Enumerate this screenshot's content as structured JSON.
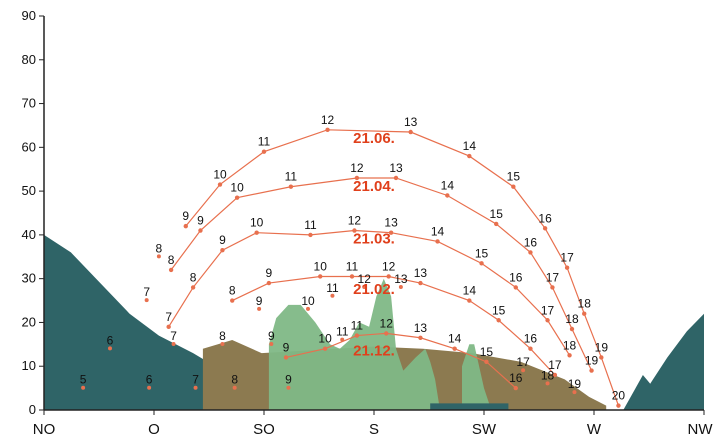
{
  "chart_data": {
    "type": "line",
    "title": "",
    "xlabel": "",
    "ylabel": "",
    "xlim": [
      45,
      315
    ],
    "ylim": [
      0,
      90
    ],
    "y_ticks": [
      0,
      10,
      20,
      30,
      40,
      50,
      60,
      70,
      80,
      90
    ],
    "x_ticks": [
      {
        "label": "NO",
        "value": 45
      },
      {
        "label": "O",
        "value": 90
      },
      {
        "label": "SO",
        "value": 135
      },
      {
        "label": "S",
        "value": 180
      },
      {
        "label": "SW",
        "value": 225
      },
      {
        "label": "W",
        "value": 270
      },
      {
        "label": "NW",
        "value": 315
      }
    ],
    "grid": false,
    "legend": "none",
    "colors": {
      "sun_path": "#e8704e",
      "date_label": "#e0401c",
      "horizon_dark": "#2f6467",
      "horizon_brown": "#8c7a50",
      "vegetation": "#7fb886",
      "axis": "#222222"
    },
    "series": [
      {
        "name": "21.06.",
        "label_at": [
          180,
          61
        ],
        "hours": [
          {
            "h": "9",
            "az": 103,
            "el": 42
          },
          {
            "h": "10",
            "az": 117,
            "el": 51.5
          },
          {
            "h": "11",
            "az": 135,
            "el": 59
          },
          {
            "h": "12",
            "az": 161,
            "el": 64
          },
          {
            "h": "13",
            "az": 195,
            "el": 63.5
          },
          {
            "h": "14",
            "az": 219,
            "el": 58
          },
          {
            "h": "15",
            "az": 237,
            "el": 51
          },
          {
            "h": "16",
            "az": 250,
            "el": 41.5
          },
          {
            "h": "17",
            "az": 259,
            "el": 32.5
          },
          {
            "h": "18",
            "az": 266,
            "el": 22
          },
          {
            "h": "19",
            "az": 273,
            "el": 12
          },
          {
            "h": "20",
            "az": 280,
            "el": 1
          }
        ]
      },
      {
        "name": "21.04.",
        "label_at": [
          180,
          50
        ],
        "hours": [
          {
            "h": "8",
            "az": 97,
            "el": 32
          },
          {
            "h": "9",
            "az": 109,
            "el": 41
          },
          {
            "h": "10",
            "az": 124,
            "el": 48.5
          },
          {
            "h": "11",
            "az": 146,
            "el": 51
          },
          {
            "h": "12",
            "az": 173,
            "el": 53
          },
          {
            "h": "13",
            "az": 189,
            "el": 53
          },
          {
            "h": "14",
            "az": 210,
            "el": 49
          },
          {
            "h": "15",
            "az": 230,
            "el": 42.5
          },
          {
            "h": "16",
            "az": 244,
            "el": 36
          },
          {
            "h": "17",
            "az": 253,
            "el": 28
          },
          {
            "h": "18",
            "az": 261,
            "el": 18.5
          },
          {
            "h": "19",
            "az": 269,
            "el": 9
          }
        ]
      },
      {
        "name": "21.03.",
        "label_at": [
          180,
          38
        ],
        "hours": [
          {
            "h": "7",
            "az": 96,
            "el": 19
          },
          {
            "h": "8",
            "az": 106,
            "el": 28
          },
          {
            "h": "9",
            "az": 118,
            "el": 36.5
          },
          {
            "h": "10",
            "az": 132,
            "el": 40.5
          },
          {
            "h": "11",
            "az": 154,
            "el": 40
          },
          {
            "h": "12",
            "az": 172,
            "el": 41
          },
          {
            "h": "13",
            "az": 187,
            "el": 40.5
          },
          {
            "h": "14",
            "az": 206,
            "el": 38.5
          },
          {
            "h": "15",
            "az": 224,
            "el": 33.5
          },
          {
            "h": "16",
            "az": 238,
            "el": 28
          },
          {
            "h": "17",
            "az": 251,
            "el": 20.5
          },
          {
            "h": "18",
            "az": 260,
            "el": 12.5
          }
        ]
      },
      {
        "name": "21.02.",
        "label_at": [
          180,
          26.5
        ],
        "hours": [
          {
            "h": "8",
            "az": 122,
            "el": 25
          },
          {
            "h": "9",
            "az": 137,
            "el": 29
          },
          {
            "h": "10",
            "az": 158,
            "el": 30.5
          },
          {
            "h": "11",
            "az": 171,
            "el": 30.5
          },
          {
            "h": "12",
            "az": 186,
            "el": 30.5
          },
          {
            "h": "13",
            "az": 199,
            "el": 29
          },
          {
            "h": "14",
            "az": 219,
            "el": 25
          },
          {
            "h": "15",
            "az": 231,
            "el": 20.5
          },
          {
            "h": "16",
            "az": 244,
            "el": 14
          },
          {
            "h": "17",
            "az": 254,
            "el": 8
          }
        ]
      },
      {
        "name": "21.12.",
        "label_at": [
          180,
          12.5
        ],
        "hours": [
          {
            "h": "9",
            "az": 144,
            "el": 12
          },
          {
            "h": "10",
            "az": 160,
            "el": 14
          },
          {
            "h": "11",
            "az": 173,
            "el": 17
          },
          {
            "h": "12",
            "az": 185,
            "el": 17.5
          },
          {
            "h": "13",
            "az": 199,
            "el": 16.5
          },
          {
            "h": "14",
            "az": 213,
            "el": 14
          },
          {
            "h": "15",
            "az": 226,
            "el": 11
          },
          {
            "h": "16",
            "az": 238,
            "el": 5
          }
        ]
      }
    ],
    "outer_hour_labels": [
      {
        "h": "8",
        "az": 92,
        "el": 36
      },
      {
        "h": "7",
        "az": 87,
        "el": 26
      },
      {
        "h": "6",
        "az": 72,
        "el": 15
      },
      {
        "h": "5",
        "az": 61,
        "el": 6
      },
      {
        "h": "7",
        "az": 98,
        "el": 16
      },
      {
        "h": "6",
        "az": 88,
        "el": 6
      },
      {
        "h": "7",
        "az": 107,
        "el": 6
      },
      {
        "h": "8",
        "az": 118,
        "el": 16
      },
      {
        "h": "9",
        "az": 133,
        "el": 24
      },
      {
        "h": "8",
        "az": 123,
        "el": 6
      },
      {
        "h": "9",
        "az": 138,
        "el": 16
      },
      {
        "h": "9",
        "az": 145,
        "el": 6
      },
      {
        "h": "10",
        "az": 153,
        "el": 24
      },
      {
        "h": "11",
        "az": 163,
        "el": 27
      },
      {
        "h": "12",
        "az": 176,
        "el": 29
      },
      {
        "h": "13",
        "az": 191,
        "el": 29
      },
      {
        "h": "11",
        "az": 167,
        "el": 17
      },
      {
        "h": "17",
        "az": 241,
        "el": 10
      },
      {
        "h": "18",
        "az": 251,
        "el": 7
      },
      {
        "h": "19",
        "az": 262,
        "el": 5
      }
    ],
    "horizon_regions": [
      {
        "name": "dark-horizon-left",
        "color_key": "horizon_dark",
        "points": [
          [
            45,
            40
          ],
          [
            56,
            36
          ],
          [
            68,
            29
          ],
          [
            80,
            22
          ],
          [
            92,
            17
          ],
          [
            106,
            13
          ],
          [
            118,
            9
          ],
          [
            132,
            4
          ],
          [
            140,
            0
          ],
          [
            45,
            0
          ]
        ]
      },
      {
        "name": "brown-terrain",
        "color_key": "horizon_brown",
        "points": [
          [
            110,
            14
          ],
          [
            122,
            16
          ],
          [
            134,
            13
          ],
          [
            180,
            14.5
          ],
          [
            200,
            14
          ],
          [
            220,
            13
          ],
          [
            240,
            11
          ],
          [
            258,
            7
          ],
          [
            268,
            3
          ],
          [
            275,
            1
          ],
          [
            275,
            0
          ],
          [
            110,
            0
          ]
        ]
      },
      {
        "name": "vegetation-shapes",
        "color_key": "vegetation",
        "points": [
          [
            137,
            0
          ],
          [
            137,
            15
          ],
          [
            140,
            21
          ],
          [
            145,
            24
          ],
          [
            150,
            24
          ],
          [
            156,
            20
          ],
          [
            162,
            15
          ],
          [
            166,
            14
          ],
          [
            170,
            16
          ],
          [
            174,
            20
          ],
          [
            178,
            19
          ],
          [
            181,
            26
          ],
          [
            184,
            30
          ],
          [
            187,
            26
          ],
          [
            189,
            14
          ],
          [
            192,
            9
          ],
          [
            197,
            12
          ],
          [
            201,
            14
          ],
          [
            203,
            11
          ],
          [
            205,
            7
          ],
          [
            207,
            0
          ]
        ]
      },
      {
        "name": "vegetation-right-trees",
        "color_key": "vegetation",
        "points": [
          [
            216,
            0
          ],
          [
            216,
            10
          ],
          [
            219,
            15
          ],
          [
            221,
            15
          ],
          [
            223,
            10
          ],
          [
            225,
            5
          ],
          [
            228,
            0
          ]
        ]
      },
      {
        "name": "dark-base-strip",
        "color_key": "horizon_dark",
        "points": [
          [
            203,
            0
          ],
          [
            203,
            1.5
          ],
          [
            235,
            1.5
          ],
          [
            235,
            0
          ]
        ]
      },
      {
        "name": "dark-horizon-right",
        "color_key": "horizon_dark",
        "points": [
          [
            282,
            0
          ],
          [
            290,
            8
          ],
          [
            293,
            6
          ],
          [
            300,
            12
          ],
          [
            308,
            18
          ],
          [
            315,
            22
          ],
          [
            315,
            0
          ]
        ]
      }
    ]
  }
}
